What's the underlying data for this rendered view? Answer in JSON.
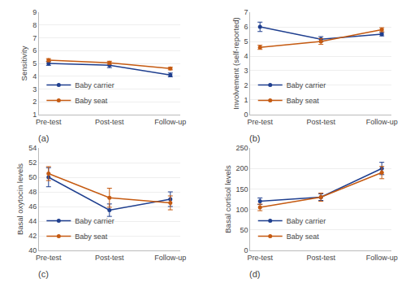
{
  "chart_data": [
    {
      "type": "line",
      "categories": [
        "Pre-test",
        "Post-test",
        "Follow-up"
      ],
      "series": [
        {
          "name": "Baby carrier",
          "color": "#1F3F8F",
          "values": [
            5.0,
            4.85,
            4.1
          ],
          "errors": [
            0.15,
            0.18,
            0.15
          ],
          "marker": "circle"
        },
        {
          "name": "Baby seat",
          "color": "#C55A11",
          "values": [
            5.25,
            5.05,
            4.6
          ],
          "errors": [
            0.12,
            0.12,
            0.1
          ],
          "marker": "circle"
        }
      ],
      "ylabel": "Sensitivity",
      "ylim": [
        1,
        9
      ],
      "yticks": [
        1,
        2,
        3,
        4,
        5,
        6,
        7,
        8,
        9
      ],
      "grid": true,
      "legend": "lower left",
      "annotation": "(a)"
    },
    {
      "type": "line",
      "categories": [
        "Pre-test",
        "Post-test",
        "Follow-up"
      ],
      "series": [
        {
          "name": "Baby carrier",
          "color": "#1F3F8F",
          "values": [
            6.0,
            5.15,
            5.5
          ],
          "errors": [
            0.32,
            0.18,
            0.12
          ],
          "marker": "circle"
        },
        {
          "name": "Baby seat",
          "color": "#C55A11",
          "values": [
            4.6,
            5.0,
            5.8
          ],
          "errors": [
            0.14,
            0.2,
            0.14
          ],
          "marker": "circle"
        }
      ],
      "ylabel": "Involvement (self-reported)",
      "ylim": [
        0,
        7
      ],
      "yticks": [
        0,
        1,
        2,
        3,
        4,
        5,
        6,
        7
      ],
      "grid": true,
      "legend": "lower left",
      "annotation": "(b)"
    },
    {
      "type": "line",
      "categories": [
        "Pre-test",
        "Post-test",
        "Follow-up"
      ],
      "series": [
        {
          "name": "Baby carrier",
          "color": "#1F3F8F",
          "values": [
            50.0,
            45.5,
            47.0
          ],
          "errors": [
            1.3,
            0.85,
            1.0
          ],
          "marker": "circle"
        },
        {
          "name": "Baby seat",
          "color": "#C55A11",
          "values": [
            50.5,
            47.2,
            46.5
          ],
          "errors": [
            0.95,
            1.3,
            0.95
          ],
          "marker": "circle"
        }
      ],
      "ylabel": "Basal oxytocin levels",
      "ylim": [
        40,
        54
      ],
      "yticks": [
        40,
        42,
        44,
        46,
        48,
        50,
        52,
        54
      ],
      "grid": true,
      "legend": "lower left",
      "annotation": "(c)"
    },
    {
      "type": "line",
      "categories": [
        "Pre-test",
        "Post-test",
        "Follow-up"
      ],
      "series": [
        {
          "name": "Baby carrier",
          "color": "#1F3F8F",
          "values": [
            120,
            130,
            200
          ],
          "errors": [
            8,
            8,
            15
          ],
          "marker": "circle"
        },
        {
          "name": "Baby seat",
          "color": "#C55A11",
          "values": [
            105,
            130,
            190
          ],
          "errors": [
            8,
            10,
            15
          ],
          "marker": "circle"
        }
      ],
      "ylabel": "Basal cortisol levels",
      "ylim": [
        0,
        250
      ],
      "yticks": [
        0,
        50,
        100,
        150,
        200,
        250
      ],
      "grid": true,
      "legend": "lower left",
      "annotation": "(d)"
    }
  ]
}
